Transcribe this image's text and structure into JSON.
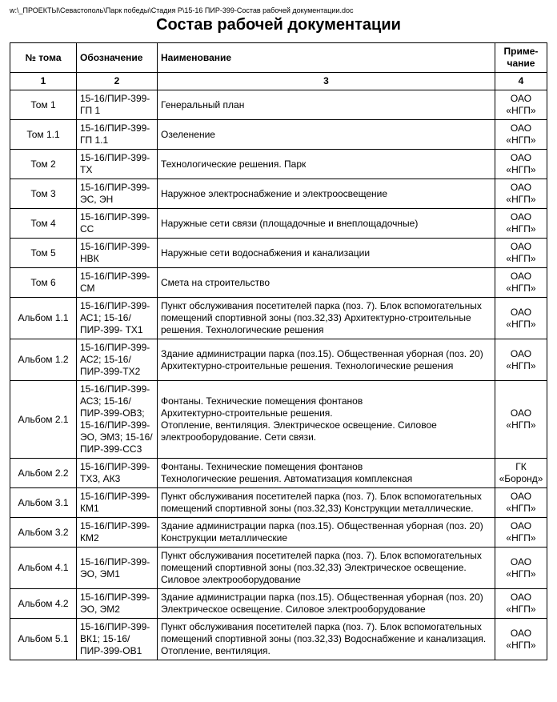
{
  "filepath": "w:\\_ПРОЕКТЫ\\Севастополь\\Парк победы\\Стадия Р\\15-16 ПИР-399-Состав рабочей документации.doc",
  "title": "Состав рабочей документации",
  "headers": {
    "c1": "№ тома",
    "c2": "Обозначение",
    "c3": "Наименование",
    "c4": "Приме-\nчание"
  },
  "numrow": {
    "c1": "1",
    "c2": "2",
    "c3": "3",
    "c4": "4"
  },
  "rows": [
    {
      "c1": "Том 1",
      "c2": "15-16/ПИР-399-ГП 1",
      "c3": "Генеральный план",
      "c4": "ОАО «НГП»"
    },
    {
      "c1": "Том 1.1",
      "c2": "15-16/ПИР-399-ГП 1.1",
      "c3": "Озеленение",
      "c4": "ОАО «НГП»"
    },
    {
      "c1": "Том 2",
      "c2": "15-16/ПИР-399-ТХ",
      "c3": "Технологические решения. Парк",
      "c4": "ОАО «НГП»"
    },
    {
      "c1": "Том 3",
      "c2": "15-16/ПИР-399-ЭС, ЭН",
      "c3": "Наружное электроснабжение и электроосвещение",
      "c4": "ОАО «НГП»"
    },
    {
      "c1": "Том 4",
      "c2": "15-16/ПИР-399-СС",
      "c3": "Наружные сети связи (площадочные и внеплощадочные)",
      "c4": "ОАО «НГП»"
    },
    {
      "c1": "Том 5",
      "c2": "15-16/ПИР-399-НВК",
      "c3": "Наружные сети водоснабжения и канализации",
      "c4": "ОАО «НГП»"
    },
    {
      "c1": "Том 6",
      "c2": "15-16/ПИР-399-СМ",
      "c3": "Смета на строительство",
      "c4": "ОАО «НГП»"
    },
    {
      "c1": "Альбом 1.1",
      "c2": "15-16/ПИР-399- АС1; 15-16/ПИР-399- ТХ1",
      "c3": "Пункт обслуживания посетителей парка (поз. 7). Блок вспомогательных помещений спортивной зоны (поз.32,33) Архитектурно-строительные решения. Технологические решения",
      "c4": "ОАО «НГП»"
    },
    {
      "c1": "Альбом 1.2",
      "c2": "15-16/ПИР-399-АС2; 15-16/ПИР-399-ТХ2",
      "c3": "Здание администрации парка (поз.15). Общественная уборная (поз. 20)\nАрхитектурно-строительные решения. Технологические решения",
      "c4": "ОАО «НГП»"
    },
    {
      "c1": "Альбом 2.1",
      "c2": "15-16/ПИР-399-АС3; 15-16/ПИР-399-ОВ3; 15-16/ПИР-399-ЭО, ЭМ3; 15-16/ПИР-399-СС3",
      "c3": "Фонтаны. Технические помещения фонтанов\nАрхитектурно-строительные решения.\nОтопление, вентиляция. Электрическое освещение. Силовое электрооборудование. Сети связи.",
      "c4": "ОАО «НГП»"
    },
    {
      "c1": "Альбом 2.2",
      "c2": "15-16/ПИР-399-ТХ3, АК3",
      "c3": "Фонтаны. Технические помещения фонтанов\nТехнологические решения.  Автоматизация комплексная",
      "c4": "ГК «Боронд»"
    },
    {
      "c1": "Альбом 3.1",
      "c2": "15-16/ПИР-399-КМ1",
      "c3": "Пункт обслуживания посетителей парка (поз. 7). Блок вспомогательных помещений спортивной зоны (поз.32,33) Конструкции металлические.",
      "c4": "ОАО «НГП»"
    },
    {
      "c1": "Альбом 3.2",
      "c2": "15-16/ПИР-399-КМ2",
      "c3": "Здание администрации парка (поз.15). Общественная уборная (поз. 20)\nКонструкции металлические",
      "c4": "ОАО «НГП»"
    },
    {
      "c1": "Альбом 4.1",
      "c2": "15-16/ПИР-399-ЭО, ЭМ1",
      "c3": "Пункт обслуживания посетителей парка (поз. 7). Блок вспомогательных помещений спортивной зоны (поз.32,33) Электрическое освещение. Силовое электрооборудование",
      "c4": "ОАО «НГП»"
    },
    {
      "c1": "Альбом 4.2",
      "c2": "15-16/ПИР-399-ЭО, ЭМ2",
      "c3": "Здание администрации парка (поз.15). Общественная уборная (поз. 20)\nЭлектрическое освещение. Силовое электрооборудование",
      "c4": "ОАО «НГП»"
    },
    {
      "c1": "Альбом 5.1",
      "c2": "15-16/ПИР-399-ВК1; 15-16/ПИР-399-ОВ1",
      "c3": "Пункт обслуживания посетителей парка (поз. 7). Блок вспомогательных помещений спортивной зоны (поз.32,33) Водоснабжение и канализация. Отопление, вентиляция.",
      "c4": "ОАО «НГП»"
    }
  ]
}
